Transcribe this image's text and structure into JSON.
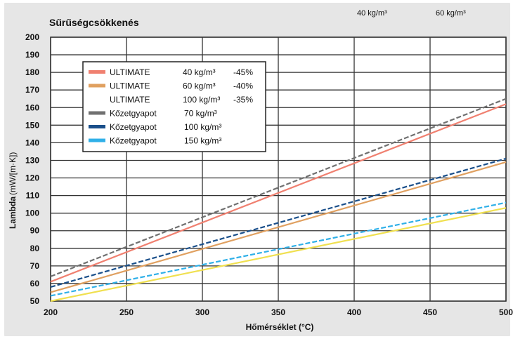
{
  "chart_data": {
    "type": "line",
    "title": "Sűrűségcsökkenés",
    "xlabel": "Hőmérséklet (°C)",
    "ylabel_bold": "Lambda",
    "ylabel_unit": "(mW/[m·K])",
    "header_labels": [
      "40 kg/m³",
      "60 kg/m³"
    ],
    "xlim": [
      200,
      500
    ],
    "ylim": [
      50,
      200
    ],
    "x_ticks": [
      200,
      250,
      300,
      350,
      400,
      450,
      500
    ],
    "y_ticks": [
      50,
      60,
      70,
      80,
      90,
      100,
      110,
      120,
      130,
      140,
      150,
      160,
      170,
      180,
      190,
      200
    ],
    "grid": true,
    "legend_placement": "top-left",
    "series": [
      {
        "name": "ULTIMATE",
        "density": "40 kg/m³",
        "reduction": "-45%",
        "color": "#f08070",
        "dashed": false,
        "x": [
          200,
          500
        ],
        "y": [
          61,
          162
        ]
      },
      {
        "name": "ULTIMATE",
        "density": "60 kg/m³",
        "reduction": "-40%",
        "color": "#e0a060",
        "dashed": false,
        "x": [
          200,
          500
        ],
        "y": [
          55,
          129
        ]
      },
      {
        "name": "ULTIMATE",
        "density": "100 kg/m³",
        "reduction": "-35%",
        "color": "#f0e050",
        "dashed": false,
        "x": [
          200,
          500
        ],
        "y": [
          50,
          103
        ]
      },
      {
        "name": "Kőzetgyapot",
        "density": "70 kg/m³",
        "reduction": "",
        "color": "#707070",
        "dashed": true,
        "x": [
          200,
          500
        ],
        "y": [
          64,
          165
        ]
      },
      {
        "name": "Kőzetgyapot",
        "density": "100 kg/m³",
        "reduction": "",
        "color": "#1a4f8a",
        "dashed": true,
        "x": [
          200,
          500
        ],
        "y": [
          58,
          131
        ]
      },
      {
        "name": "Kőzetgyapot",
        "density": "150 kg/m³",
        "reduction": "",
        "color": "#30b0e8",
        "dashed": true,
        "x": [
          200,
          500
        ],
        "y": [
          53,
          106
        ]
      }
    ]
  }
}
